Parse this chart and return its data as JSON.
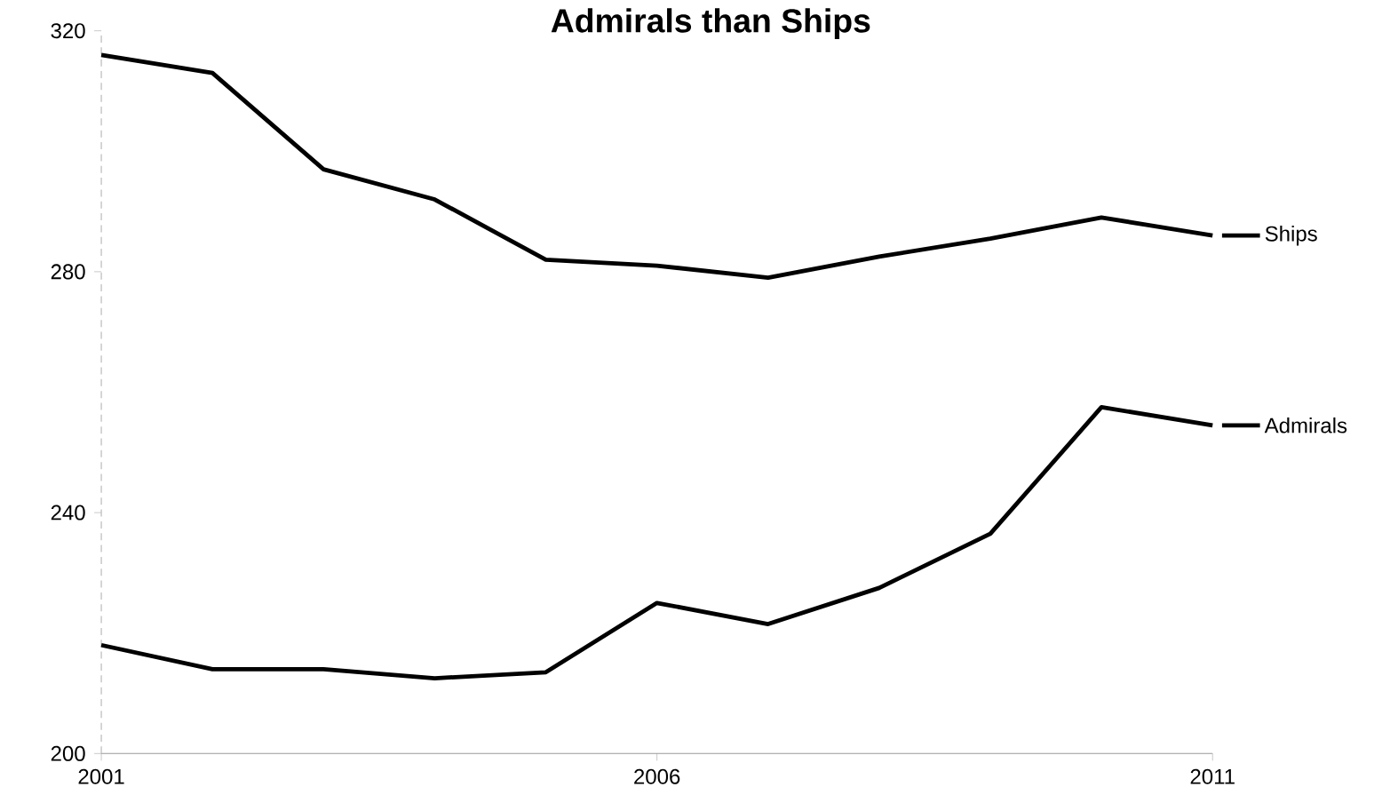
{
  "chart_data": {
    "type": "line",
    "title": "Admirals than Ships",
    "x": [
      2001,
      2002,
      2003,
      2004,
      2005,
      2006,
      2007,
      2008,
      2009,
      2010,
      2011
    ],
    "series": [
      {
        "name": "Ships",
        "color": "#000000",
        "values": [
          316,
          313,
          297,
          292,
          282,
          281,
          279,
          282.5,
          285.5,
          289,
          286
        ]
      },
      {
        "name": "Admirals",
        "color": "#000000",
        "values": [
          218,
          214,
          214,
          212.5,
          213.5,
          225,
          221.5,
          227.5,
          236.5,
          257.5,
          254.5
        ]
      }
    ],
    "xlim": [
      2001,
      2011
    ],
    "xticks": [
      2001,
      2006,
      2011
    ],
    "ylim": [
      200,
      320
    ],
    "yticks": [
      200,
      240,
      280,
      320
    ],
    "grid": false,
    "legend": "right",
    "marker": "none",
    "line_style": "solid"
  }
}
